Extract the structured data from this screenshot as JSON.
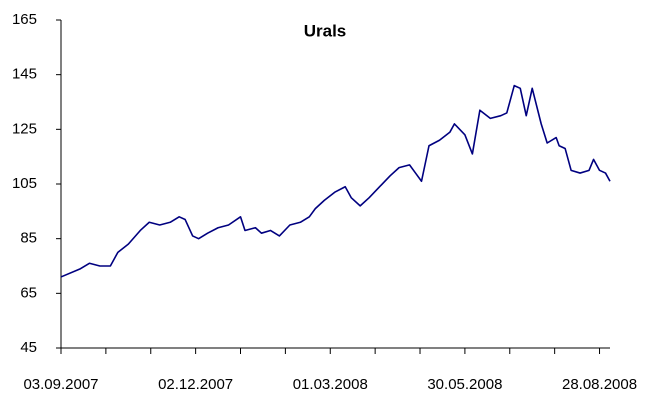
{
  "chart_data": {
    "type": "line",
    "title": "Urals",
    "x": [
      "03.09.2007",
      "16.09.2007",
      "22.09.2007",
      "29.09.2007",
      "06.10.2007",
      "11.10.2007",
      "18.10.2007",
      "26.10.2007",
      "01.11.2007",
      "08.11.2007",
      "15.11.2007",
      "21.11.2007",
      "25.11.2007",
      "30.11.2007",
      "04.12.2007",
      "10.12.2007",
      "17.12.2007",
      "24.12.2007",
      "01.01.2008",
      "04.01.2008",
      "11.01.2008",
      "15.01.2008",
      "21.01.2008",
      "27.01.2008",
      "03.02.2008",
      "10.02.2008",
      "16.02.2008",
      "20.02.2008",
      "26.02.2008",
      "04.03.2008",
      "11.03.2008",
      "15.03.2008",
      "21.03.2008",
      "27.03.2008",
      "03.04.2008",
      "10.04.2008",
      "16.04.2008",
      "23.04.2008",
      "27.04.2008",
      "01.05.2008",
      "06.05.2008",
      "13.05.2008",
      "20.05.2008",
      "23.05.2008",
      "30.05.2008",
      "04.06.2008",
      "09.06.2008",
      "16.06.2008",
      "23.06.2008",
      "27.06.2008",
      "02.07.2008",
      "06.07.2008",
      "10.07.2008",
      "14.07.2008",
      "20.07.2008",
      "24.07.2008",
      "30.07.2008",
      "01.08.2008",
      "05.08.2008",
      "09.08.2008",
      "15.08.2008",
      "21.08.2008",
      "24.08.2008",
      "28.08.2008",
      "01.09.2008",
      "04.09.2008"
    ],
    "series": [
      {
        "name": "Urals",
        "color": "#000080",
        "values": [
          71,
          74,
          76,
          75,
          75,
          80,
          83,
          88,
          91,
          90,
          91,
          93,
          92,
          86,
          85,
          87,
          89,
          90,
          93,
          88,
          89,
          87,
          88,
          86,
          90,
          91,
          93,
          96,
          99,
          102,
          104,
          100,
          97,
          100,
          104,
          108,
          111,
          112,
          109,
          106,
          119,
          121,
          124,
          127,
          123,
          116,
          132,
          129,
          130,
          131,
          141,
          140,
          130,
          140,
          127,
          120,
          122,
          119,
          118,
          110,
          109,
          110,
          114,
          110,
          109,
          106
        ]
      }
    ],
    "xlim": [
      "03.09.2007",
      "04.09.2008"
    ],
    "xticks": [
      "03.09.2007",
      "02.12.2007",
      "01.03.2008",
      "30.05.2008",
      "28.08.2008"
    ],
    "minor_xticks": [
      "03.10.2007",
      "02.11.2007",
      "01.01.2008",
      "31.01.2008",
      "31.03.2008",
      "30.04.2008",
      "29.06.2008",
      "29.07.2008"
    ],
    "ylim": [
      45,
      165
    ],
    "yticks": [
      45,
      65,
      85,
      105,
      125,
      145,
      165
    ],
    "grid": false
  }
}
